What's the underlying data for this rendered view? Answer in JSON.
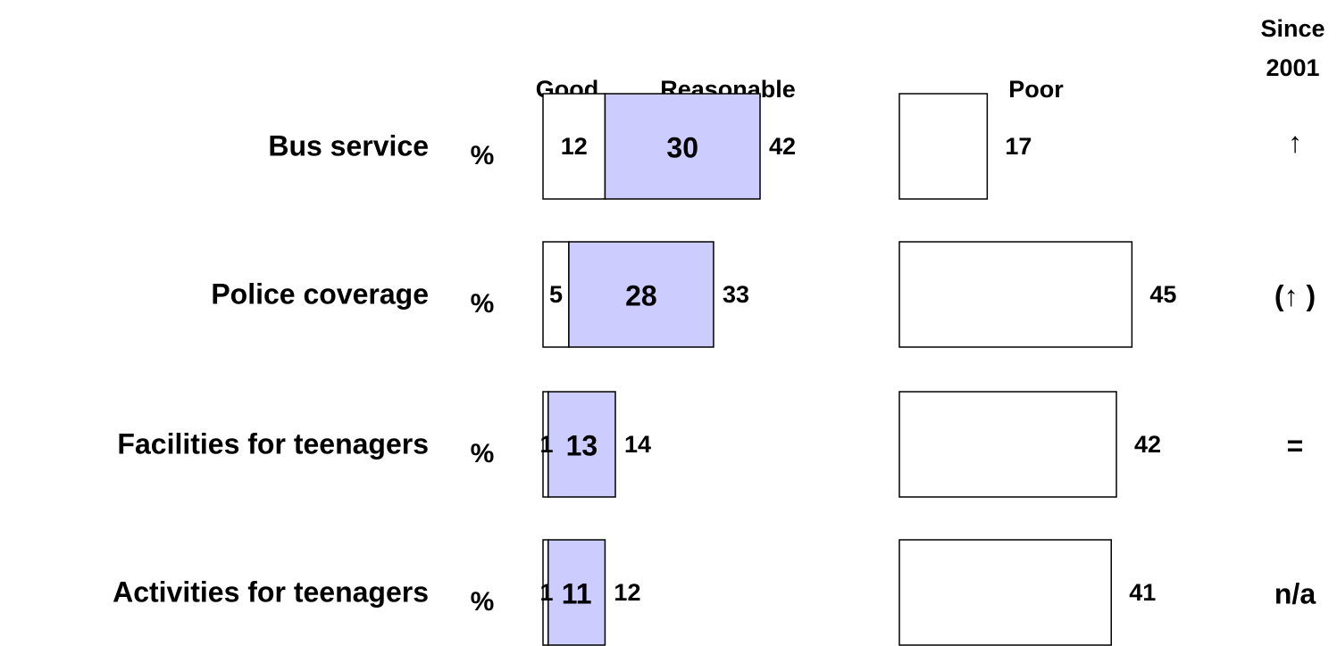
{
  "chart_data": {
    "type": "bar",
    "categories": [
      "Bus service",
      "Police coverage",
      "Facilities for teenagers",
      "Activities for teenagers"
    ],
    "unit": "%",
    "series": [
      {
        "name": "Good",
        "color": "#ffffff",
        "values": [
          12,
          5,
          1,
          1
        ]
      },
      {
        "name": "Reasonable",
        "color": "#ccccff",
        "values": [
          30,
          28,
          13,
          11
        ]
      },
      {
        "name": "Poor",
        "color": "#ffffff",
        "values": [
          17,
          45,
          42,
          41
        ]
      }
    ],
    "totals": [
      42,
      33,
      14,
      12
    ],
    "trend_header": "Since 2001",
    "trends": [
      "↑",
      "(↑ )",
      "=",
      "n/a"
    ]
  }
}
